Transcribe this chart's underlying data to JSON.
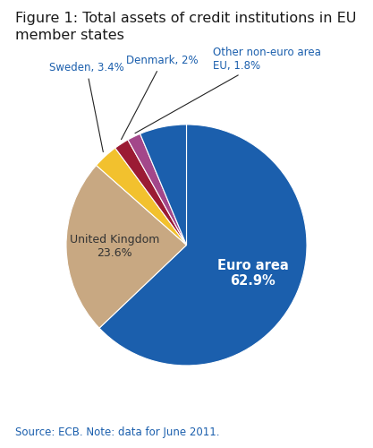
{
  "title_line1": "Figure 1: Total assets of credit institutions in EU",
  "title_line2": "member states",
  "title_fontsize": 11.5,
  "source_text": "Source: ECB. Note: data for June 2011.",
  "source_fontsize": 8.5,
  "slices": [
    {
      "label": "Euro area",
      "value": 62.9,
      "color": "#1B5FAD"
    },
    {
      "label": "United Kingdom",
      "value": 23.6,
      "color": "#C8A882"
    },
    {
      "label": "Sweden, 3.4%",
      "value": 3.4,
      "color": "#F2C12E"
    },
    {
      "label": "Denmark, 2%",
      "value": 2.0,
      "color": "#9B1B34"
    },
    {
      "label": "Other non-euro area\nEU, 1.8%",
      "value": 1.8,
      "color": "#A3478A"
    },
    {
      "label": "",
      "value": 6.3,
      "color": "#1B5FAD"
    }
  ],
  "background_color": "#ffffff"
}
